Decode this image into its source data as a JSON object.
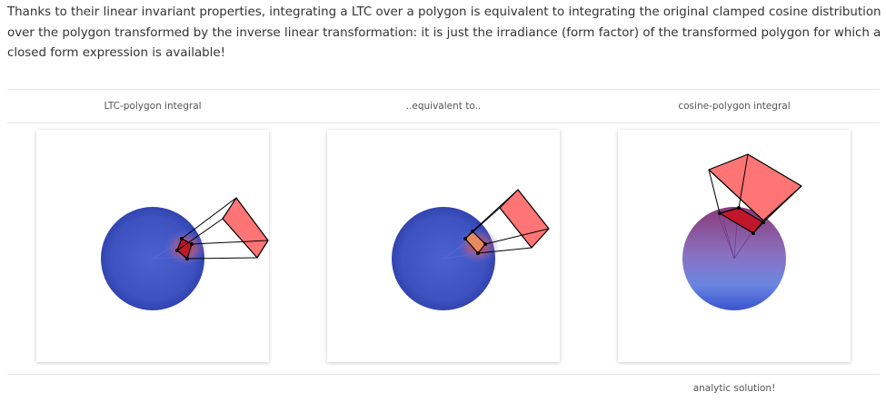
{
  "intro_text": "Thanks to their linear invariant properties, integrating a LTC over a polygon is equivalent to integrating the original clamped cosine distribution over the polygon transformed by the inverse linear transformation: it is just the irradiance (form factor) of the transformed polygon for which a closed form expression is available!",
  "figure": {
    "columns": [
      {
        "label": "LTC-polygon integral",
        "footer": ""
      },
      {
        "label": "..equivalent to..",
        "footer": ""
      },
      {
        "label": "cosine-polygon integral",
        "footer": "analytic solution!"
      }
    ]
  },
  "colors": {
    "sphere_blue": "#4258c8",
    "polygon_fill": "#ff7070",
    "projection_red": "#c8202a",
    "cosine_purple": "#8a3a78"
  }
}
